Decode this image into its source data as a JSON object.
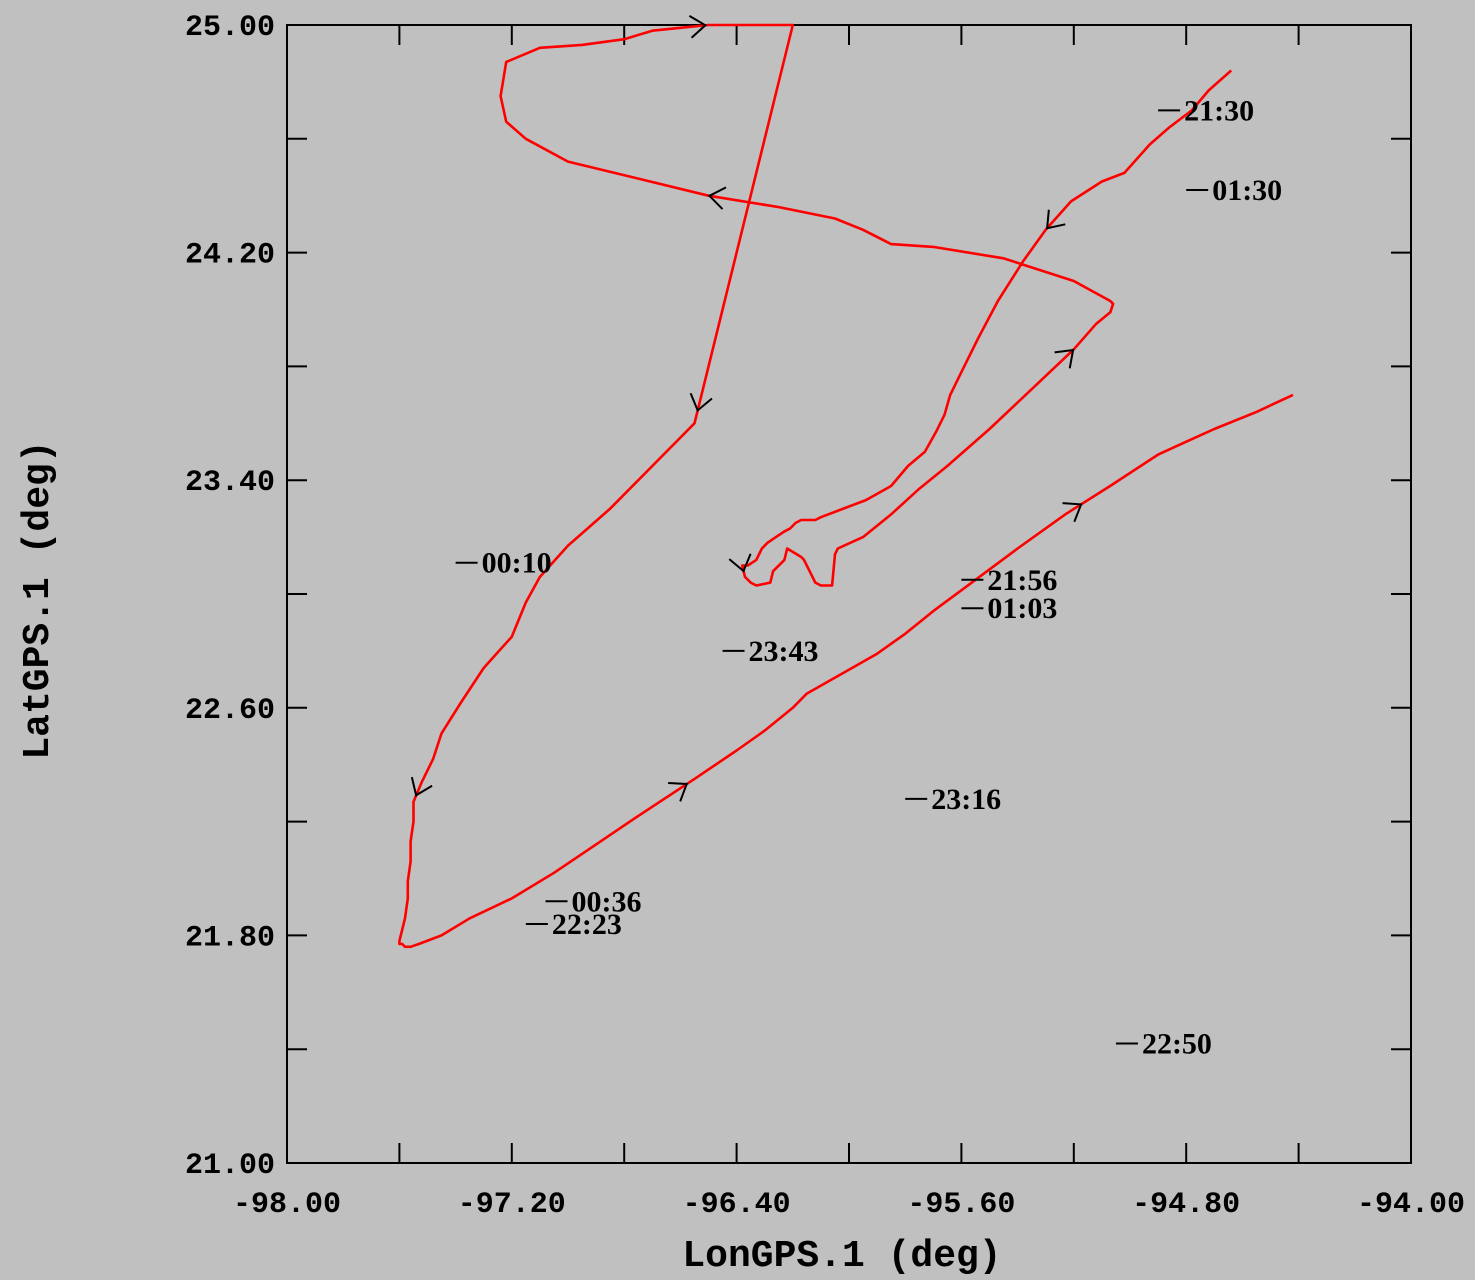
{
  "chart_data": {
    "type": "line",
    "xlabel": "LonGPS.1 (deg)",
    "ylabel": "LatGPS.1 (deg)",
    "xlim": [
      -98.0,
      -94.0
    ],
    "ylim": [
      21.0,
      25.0
    ],
    "x_ticks": [
      "-98.00",
      "-97.20",
      "-96.40",
      "-95.60",
      "-94.80",
      "-94.00"
    ],
    "y_ticks": [
      "25.00",
      "24.20",
      "23.40",
      "22.60",
      "21.80",
      "21.00"
    ],
    "grid": false,
    "line_color": "#ff0000",
    "series": [
      {
        "x": [
          -94.64,
          -94.72,
          -94.78,
          -94.86,
          -94.93,
          -95.02,
          -95.1,
          -95.21,
          -95.3,
          -95.38,
          -95.47,
          -95.54,
          -95.6,
          -95.64,
          -95.66,
          -95.69,
          -95.73,
          -95.79,
          -95.85,
          -95.94,
          -96.02,
          -96.1,
          -96.12,
          -96.17,
          -96.19,
          -96.21,
          -96.23,
          -96.26,
          -96.29,
          -96.31,
          -96.33,
          -96.36,
          -96.38,
          -96.37,
          -96.35,
          -96.33,
          -96.28,
          -96.27,
          -96.23,
          -96.22,
          -96.17,
          -96.16,
          -96.12,
          -96.1,
          -96.06,
          -96.05,
          -96.04,
          -95.95,
          -95.85,
          -95.75,
          -95.65,
          -95.5,
          -95.35,
          -95.2,
          -95.12,
          -95.07,
          -95.06,
          -95.07,
          -95.2,
          -95.45,
          -95.7,
          -95.85,
          -95.95,
          -96.05,
          -96.25,
          -96.5,
          -96.75,
          -97.0,
          -97.15,
          -97.22,
          -97.24,
          -97.22,
          -97.1,
          -96.95,
          -96.8,
          -96.7,
          -96.6,
          -96.5,
          -96.42,
          -96.38,
          -96.35,
          -96.33,
          -96.3,
          -96.27,
          -96.2,
          -96.4,
          -96.55,
          -96.7,
          -96.85,
          -97.0,
          -97.1,
          -97.15,
          -97.2,
          -97.3,
          -97.38,
          -97.45,
          -97.48,
          -97.52,
          -97.55,
          -97.55,
          -97.56,
          -97.56,
          -97.57,
          -97.57,
          -97.58,
          -97.59,
          -97.6,
          -97.6,
          -97.59,
          -97.58,
          -97.56,
          -97.53,
          -97.45,
          -97.35,
          -97.2,
          -97.05,
          -96.9,
          -96.75,
          -96.55,
          -96.4,
          -96.3,
          -96.2,
          -96.15,
          -95.9,
          -95.8,
          -95.7,
          -95.55,
          -95.4,
          -95.23,
          -95.07,
          -94.9,
          -94.79,
          -94.7,
          -94.55,
          -94.42
        ],
        "y": [
          24.84,
          24.77,
          24.7,
          24.64,
          24.58,
          24.48,
          24.45,
          24.38,
          24.28,
          24.17,
          24.03,
          23.9,
          23.78,
          23.7,
          23.63,
          23.57,
          23.5,
          23.45,
          23.38,
          23.33,
          23.3,
          23.27,
          23.26,
          23.26,
          23.25,
          23.23,
          23.22,
          23.2,
          23.18,
          23.16,
          23.12,
          23.1,
          23.1,
          23.06,
          23.04,
          23.03,
          23.04,
          23.08,
          23.12,
          23.16,
          23.13,
          23.12,
          23.04,
          23.03,
          23.03,
          23.14,
          23.16,
          23.2,
          23.28,
          23.37,
          23.45,
          23.58,
          23.72,
          23.86,
          23.95,
          23.99,
          24.02,
          24.03,
          24.1,
          24.18,
          24.22,
          24.23,
          24.28,
          24.32,
          24.36,
          24.4,
          24.46,
          24.52,
          24.6,
          24.66,
          24.75,
          24.87,
          24.92,
          24.93,
          24.95,
          24.98,
          24.99,
          25.0,
          25.0,
          25.0,
          25.0,
          25.0,
          25.0,
          25.0,
          25.0,
          24.2,
          23.6,
          23.45,
          23.3,
          23.17,
          23.06,
          22.97,
          22.85,
          22.74,
          22.62,
          22.51,
          22.42,
          22.34,
          22.27,
          22.2,
          22.13,
          22.06,
          21.99,
          21.93,
          21.86,
          21.82,
          21.78,
          21.77,
          21.77,
          21.76,
          21.76,
          21.77,
          21.8,
          21.86,
          21.93,
          22.02,
          22.12,
          22.22,
          22.35,
          22.45,
          22.52,
          22.6,
          22.65,
          22.79,
          22.86,
          22.94,
          23.05,
          23.16,
          23.28,
          23.38,
          23.49,
          23.54,
          23.58,
          23.64,
          23.7
        ]
      }
    ],
    "direction_arrows": 9,
    "annotations": [
      {
        "text": "21:30",
        "lon": -94.9,
        "lat": 24.7
      },
      {
        "text": "01:30",
        "lon": -94.8,
        "lat": 24.42
      },
      {
        "text": "21:56",
        "lon": -95.6,
        "lat": 23.05
      },
      {
        "text": "01:03",
        "lon": -95.6,
        "lat": 22.95
      },
      {
        "text": "23:43",
        "lon": -96.45,
        "lat": 22.8
      },
      {
        "text": "23:16",
        "lon": -95.8,
        "lat": 22.28
      },
      {
        "text": "00:10",
        "lon": -97.4,
        "lat": 23.11
      },
      {
        "text": "00:36",
        "lon": -97.08,
        "lat": 21.92
      },
      {
        "text": "22:23",
        "lon": -97.15,
        "lat": 21.84
      },
      {
        "text": "22:50",
        "lon": -95.05,
        "lat": 21.42
      }
    ]
  }
}
